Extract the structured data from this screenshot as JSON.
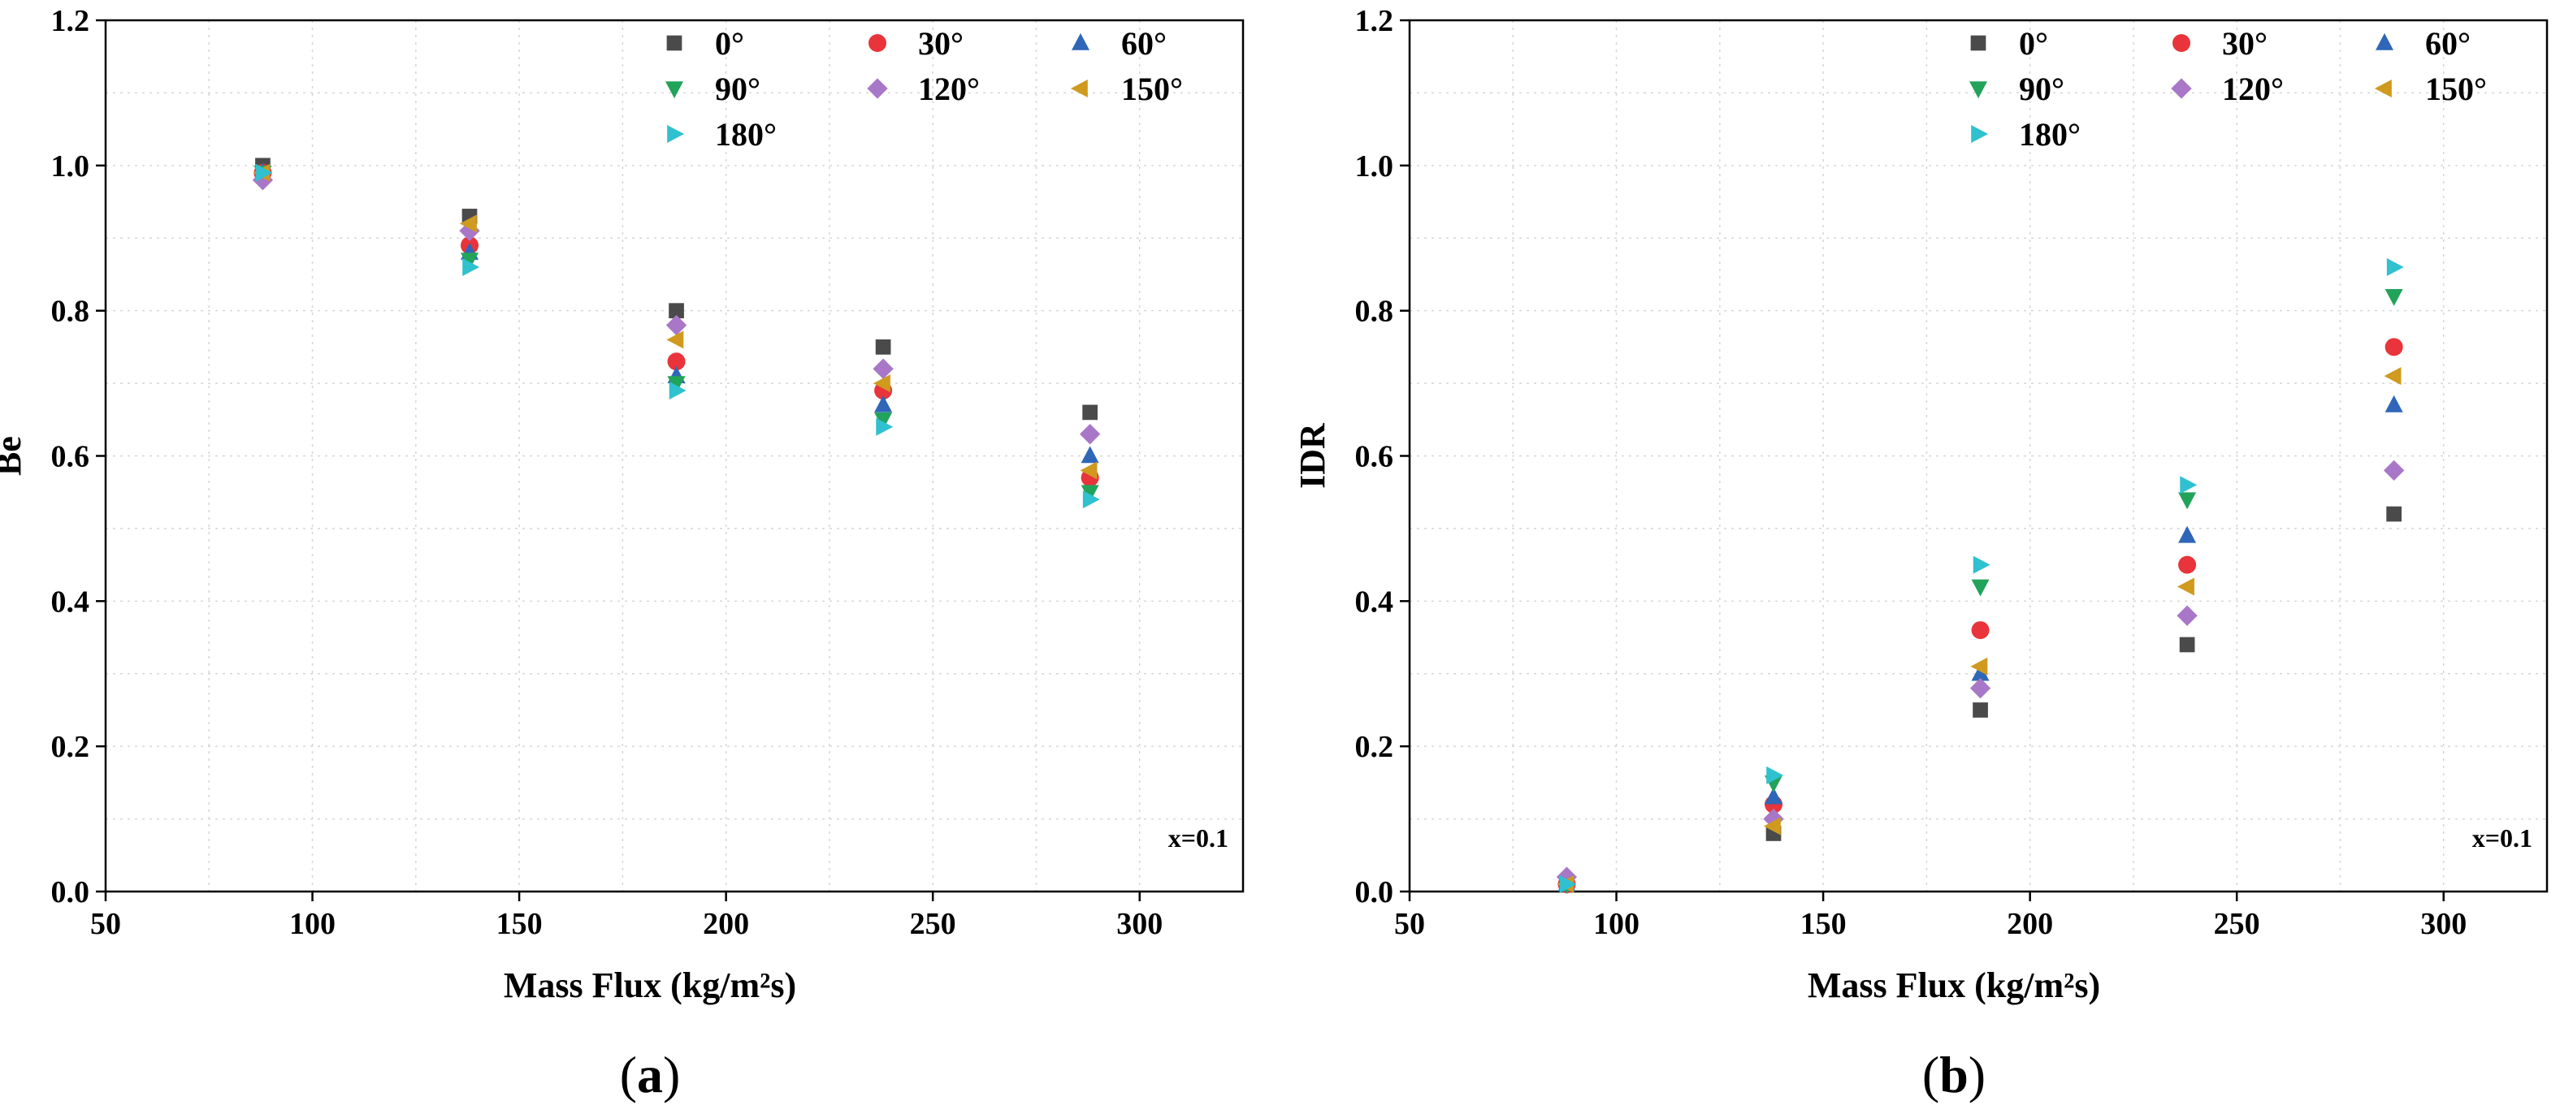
{
  "colors": {
    "0°": "#4a4a4a",
    "30°": "#e8343a",
    "60°": "#2f66b8",
    "90°": "#22a35a",
    "120°": "#a877c8",
    "150°": "#cf9a1e",
    "180°": "#2fc1cf"
  },
  "markers": {
    "0°": "square-icon",
    "30°": "circle-icon",
    "60°": "triangle-up-icon",
    "90°": "triangle-down-icon",
    "120°": "diamond-icon",
    "150°": "triangle-left-icon",
    "180°": "triangle-right-icon"
  },
  "chart_data": [
    {
      "type": "scatter",
      "panel_label": "a",
      "xlabel": "Mass Flux (kg/m²s)",
      "ylabel": "Be",
      "xlim": [
        50,
        325
      ],
      "ylim": [
        0,
        1.2
      ],
      "xticks": [
        50,
        100,
        150,
        200,
        250,
        300
      ],
      "yticks": [
        0.0,
        0.2,
        0.4,
        0.6,
        0.8,
        1.0,
        1.2
      ],
      "grid": true,
      "legend_position": "top-right",
      "annotation": "x=0.1",
      "x": [
        88,
        138,
        188,
        238,
        288
      ],
      "series": [
        {
          "name": "0°",
          "values": [
            1.0,
            0.93,
            0.8,
            0.75,
            0.66
          ]
        },
        {
          "name": "30°",
          "values": [
            0.99,
            0.89,
            0.73,
            0.69,
            0.57
          ]
        },
        {
          "name": "60°",
          "values": [
            0.99,
            0.88,
            0.71,
            0.67,
            0.6
          ]
        },
        {
          "name": "90°",
          "values": [
            0.99,
            0.87,
            0.7,
            0.65,
            0.55
          ]
        },
        {
          "name": "120°",
          "values": [
            0.98,
            0.91,
            0.78,
            0.72,
            0.63
          ]
        },
        {
          "name": "150°",
          "values": [
            0.99,
            0.92,
            0.76,
            0.7,
            0.58
          ]
        },
        {
          "name": "180°",
          "values": [
            0.99,
            0.86,
            0.69,
            0.64,
            0.54
          ]
        }
      ]
    },
    {
      "type": "scatter",
      "panel_label": "b",
      "xlabel": "Mass Flux (kg/m²s)",
      "ylabel": "IDR",
      "xlim": [
        50,
        325
      ],
      "ylim": [
        0,
        1.2
      ],
      "xticks": [
        50,
        100,
        150,
        200,
        250,
        300
      ],
      "yticks": [
        0.0,
        0.2,
        0.4,
        0.6,
        0.8,
        1.0,
        1.2
      ],
      "grid": true,
      "legend_position": "top-right",
      "annotation": "x=0.1",
      "x": [
        88,
        138,
        188,
        238,
        288
      ],
      "series": [
        {
          "name": "0°",
          "values": [
            0.01,
            0.08,
            0.25,
            0.34,
            0.52
          ]
        },
        {
          "name": "30°",
          "values": [
            0.01,
            0.12,
            0.36,
            0.45,
            0.75
          ]
        },
        {
          "name": "60°",
          "values": [
            0.01,
            0.13,
            0.3,
            0.49,
            0.67
          ]
        },
        {
          "name": "90°",
          "values": [
            0.01,
            0.15,
            0.42,
            0.54,
            0.82
          ]
        },
        {
          "name": "120°",
          "values": [
            0.02,
            0.1,
            0.28,
            0.38,
            0.58
          ]
        },
        {
          "name": "150°",
          "values": [
            0.01,
            0.09,
            0.31,
            0.42,
            0.71
          ]
        },
        {
          "name": "180°",
          "values": [
            0.01,
            0.16,
            0.45,
            0.56,
            0.86
          ]
        }
      ]
    }
  ]
}
